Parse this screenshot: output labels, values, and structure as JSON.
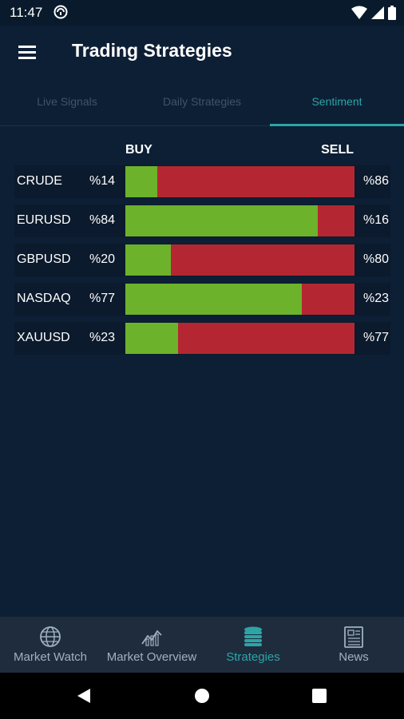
{
  "status_bar": {
    "time": "11:47",
    "icons": [
      "do-not-disturb-icon",
      "wifi-icon",
      "signal-icon",
      "battery-icon"
    ]
  },
  "app_bar": {
    "title": "Trading Strategies",
    "menu_icon": "menu-icon"
  },
  "tabs": [
    {
      "label": "Live Signals",
      "active": false
    },
    {
      "label": "Daily Strategies",
      "active": false
    },
    {
      "label": "Sentiment",
      "active": true
    }
  ],
  "sentiment": {
    "buy_header": "BUY",
    "sell_header": "SELL",
    "rows": [
      {
        "symbol": "CRUDE",
        "buy_label": "%14",
        "sell_label": "%86",
        "buy": 14
      },
      {
        "symbol": "EURUSD",
        "buy_label": "%84",
        "sell_label": "%16",
        "buy": 84
      },
      {
        "symbol": "GBPUSD",
        "buy_label": "%20",
        "sell_label": "%80",
        "buy": 20
      },
      {
        "symbol": "NASDAQ",
        "buy_label": "%77",
        "sell_label": "%23",
        "buy": 77
      },
      {
        "symbol": "XAUUSD",
        "buy_label": "%23",
        "sell_label": "%77",
        "buy": 23
      }
    ]
  },
  "bottom_nav": [
    {
      "label": "Market Watch",
      "icon": "globe-icon",
      "active": false
    },
    {
      "label": "Market Overview",
      "icon": "chart-icon",
      "active": false
    },
    {
      "label": "Strategies",
      "icon": "coins-icon",
      "active": true
    },
    {
      "label": "News",
      "icon": "newspaper-icon",
      "active": false
    }
  ],
  "colors": {
    "background": "#0d1f35",
    "accent": "#2ba5a7",
    "buy": "#6cb22a",
    "sell": "#b42732",
    "nav_bg": "#1f2c3d"
  }
}
